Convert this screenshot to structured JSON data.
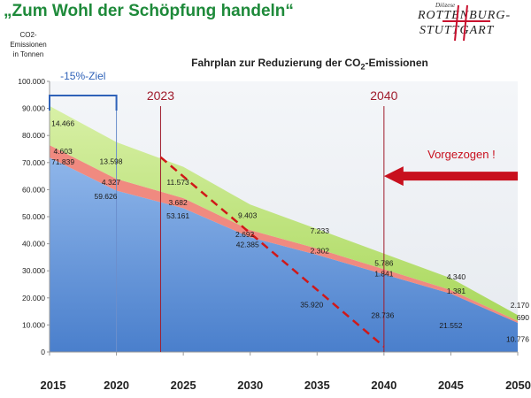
{
  "page": {
    "headline": "„Zum Wohl der Schöpfung handeln“",
    "logo": {
      "small": "Diözese",
      "line1": "ROTTENBURG-",
      "line2": "STUTTGART"
    }
  },
  "chart_data": {
    "type": "area",
    "title_prefix": "Fahrplan zur Reduzierung der CO",
    "title_sub": "2",
    "title_suffix": "-Emissionen",
    "ylabel_lines": [
      "CO2-",
      "Emissionen",
      "in Tonnen"
    ],
    "x": [
      2015,
      2020,
      2025,
      2030,
      2035,
      2040,
      2045,
      2050
    ],
    "xlim": [
      2015,
      2050
    ],
    "ylim": [
      0,
      100000
    ],
    "yticks": [
      0,
      10000,
      20000,
      30000,
      40000,
      50000,
      60000,
      70000,
      80000,
      90000,
      100000
    ],
    "yticklabels": [
      "0",
      "10.000",
      "20.000",
      "30.000",
      "40.000",
      "50.000",
      "60.000",
      "70.000",
      "80.000",
      "90.000",
      "100.000"
    ],
    "xticklabels": [
      "2015",
      "2020",
      "2025",
      "2030",
      "2035",
      "2040",
      "2045",
      "2050"
    ],
    "series": [
      {
        "values": [
          71839,
          59626,
          53161,
          42385,
          35920,
          28736,
          21552,
          10776
        ],
        "color": "#5b8fd6"
      },
      {
        "values": [
          4603,
          4327,
          3682,
          2692,
          2302,
          1841,
          1381,
          690
        ],
        "color": "#f08a80"
      },
      {
        "values": [
          14466,
          13598,
          11573,
          9403,
          7233,
          5786,
          4340,
          2170
        ],
        "color": "#b4e06c"
      }
    ],
    "value_labels": [
      {
        "text": "14.466",
        "x": 2016.0,
        "y": 84500
      },
      {
        "text": "4.603",
        "x": 2016.0,
        "y": 74200
      },
      {
        "text": "71.839",
        "x": 2016.0,
        "y": 70300
      },
      {
        "text": "13.598",
        "x": 2019.6,
        "y": 70500
      },
      {
        "text": "4.327",
        "x": 2019.6,
        "y": 62800
      },
      {
        "text": "59.626",
        "x": 2019.2,
        "y": 57500
      },
      {
        "text": "11.573",
        "x": 2024.6,
        "y": 62700
      },
      {
        "text": "3.682",
        "x": 2024.6,
        "y": 55200
      },
      {
        "text": "53.161",
        "x": 2024.6,
        "y": 50400
      },
      {
        "text": "9.403",
        "x": 2029.8,
        "y": 50500
      },
      {
        "text": "2.692",
        "x": 2029.6,
        "y": 43500
      },
      {
        "text": "42.385",
        "x": 2029.8,
        "y": 39700
      },
      {
        "text": "7.233",
        "x": 2035.2,
        "y": 44800
      },
      {
        "text": "2.302",
        "x": 2035.2,
        "y": 37500
      },
      {
        "text": "35.920",
        "x": 2034.6,
        "y": 17500
      },
      {
        "text": "5.786",
        "x": 2040.0,
        "y": 32800
      },
      {
        "text": "1.841",
        "x": 2040.0,
        "y": 29000
      },
      {
        "text": "28.736",
        "x": 2039.9,
        "y": 13500
      },
      {
        "text": "4.340",
        "x": 2045.4,
        "y": 27800
      },
      {
        "text": "1.381",
        "x": 2045.4,
        "y": 22500
      },
      {
        "text": "21.552",
        "x": 2045.0,
        "y": 9800
      },
      {
        "text": "2.170",
        "x": 2050.0,
        "y": 17300
      },
      {
        "text": "690",
        "x": 2050.0,
        "y": 12800
      },
      {
        "text": "10.776",
        "x": 2049.9,
        "y": 4800
      }
    ],
    "annotations": {
      "target_label": "-15%-Ziel",
      "target_range": [
        2015,
        2020
      ],
      "year_lines": [
        {
          "label": "2023",
          "x": 2023.3
        },
        {
          "label": "2040",
          "x": 2040
        }
      ],
      "blue_line_x": 2020,
      "trend": {
        "x0": 2023.3,
        "y0": 72000,
        "x1": 2040,
        "y1": 2000
      },
      "arrow_label": "Vorgezogen !",
      "arrow_from_x": 2050,
      "arrow_to_x": 2040,
      "arrow_y": 65000
    },
    "grid": false,
    "legend": "none"
  }
}
